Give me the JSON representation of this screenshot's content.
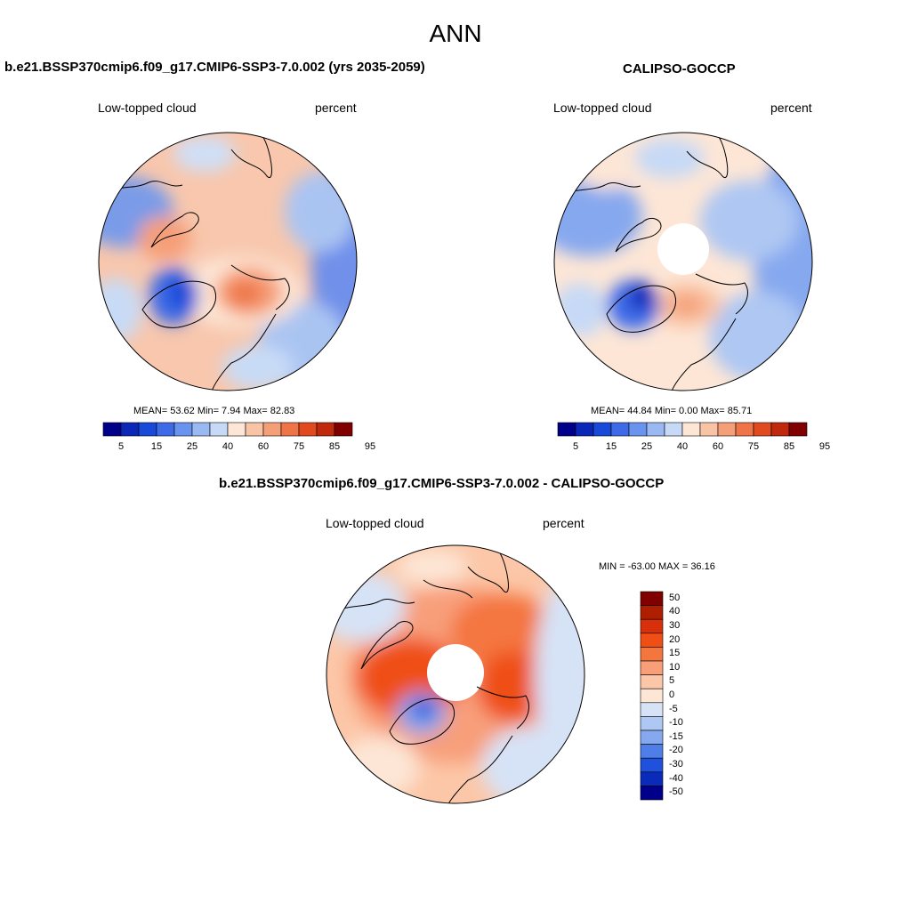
{
  "figure": {
    "title": "ANN"
  },
  "panels": [
    {
      "title": "b.e21.BSSP370cmip6.f09_g17.CMIP6-SSP3-7.0.002 (yrs 2035-2059)",
      "left_label": "Low-topped cloud",
      "right_label": "percent",
      "stats": "MEAN=  53.62  Min=   7.94  Max=  82.83",
      "colorbar_ticks": [
        "5",
        "15",
        "25",
        "40",
        "60",
        "75",
        "85",
        "95"
      ]
    },
    {
      "title": "CALIPSO-GOCCP",
      "left_label": "Low-topped cloud",
      "right_label": "percent",
      "stats": "MEAN=  44.84  Min=   0.00  Max=  85.71",
      "colorbar_ticks": [
        "5",
        "15",
        "25",
        "40",
        "60",
        "75",
        "85",
        "95"
      ]
    },
    {
      "title": "b.e21.BSSP370cmip6.f09_g17.CMIP6-SSP3-7.0.002 - CALIPSO-GOCCP",
      "left_label": "Low-topped cloud",
      "right_label": "percent",
      "stats": "MIN = -63.00 MAX =  36.16",
      "colorbar_ticks": [
        "50",
        "40",
        "30",
        "20",
        "15",
        "10",
        "5",
        "0",
        "-5",
        "-10",
        "-15",
        "-20",
        "-30",
        "-40",
        "-50"
      ]
    }
  ],
  "colors": {
    "abs_scale": [
      "#00008a",
      "#0b27b8",
      "#1849d8",
      "#3e6ae8",
      "#6a93ef",
      "#9ab9f3",
      "#c6d9f6",
      "#fde6d6",
      "#f9c4a5",
      "#f59f78",
      "#ef7447",
      "#e14a1f",
      "#c0290b",
      "#800000"
    ],
    "diff_scale": [
      "#800000",
      "#ad1f00",
      "#d7300a",
      "#ef4f15",
      "#f4763f",
      "#f89f7a",
      "#fcc7a8",
      "#fde6d6",
      "#d6e3f7",
      "#aec7f3",
      "#86a8ef",
      "#4f7ee9",
      "#2051dc",
      "#0a2bba",
      "#00008a"
    ]
  }
}
